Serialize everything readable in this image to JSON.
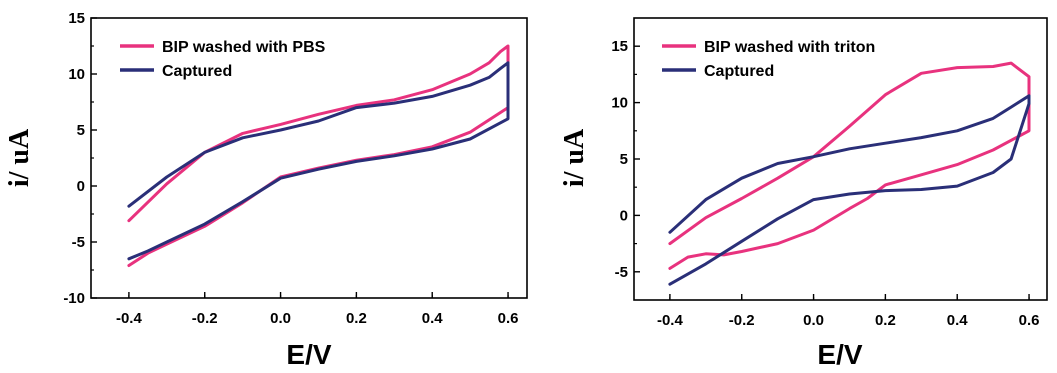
{
  "chart_data": [
    {
      "type": "line",
      "xlabel": "E/V",
      "ylabel": "i/ uA",
      "xlim": [
        -0.5,
        0.65
      ],
      "ylim": [
        -10,
        15
      ],
      "xticks": [
        "-0.4",
        "-0.2",
        "0.0",
        "0.2",
        "0.4",
        "0.6"
      ],
      "yticks": [
        "-10",
        "-5",
        "0",
        "5",
        "10",
        "15"
      ],
      "legend_position": "top-left",
      "series": [
        {
          "name": "BIP washed with PBS",
          "color": "#e8327e",
          "x": [
            -0.4,
            -0.35,
            -0.3,
            -0.2,
            -0.1,
            0.0,
            0.1,
            0.2,
            0.3,
            0.4,
            0.5,
            0.6,
            0.6,
            0.58,
            0.55,
            0.5,
            0.4,
            0.3,
            0.2,
            0.1,
            0.0,
            -0.1,
            -0.2,
            -0.3,
            -0.4
          ],
          "y": [
            -7.1,
            -6.0,
            -5.2,
            -3.6,
            -1.5,
            0.8,
            1.6,
            2.3,
            2.8,
            3.5,
            4.8,
            7.0,
            12.5,
            12.0,
            11.0,
            10.0,
            8.6,
            7.7,
            7.2,
            6.4,
            5.5,
            4.7,
            3.0,
            0.2,
            -3.1
          ]
        },
        {
          "name": "Captured",
          "color": "#2a2f78",
          "x": [
            -0.4,
            -0.35,
            -0.3,
            -0.2,
            -0.1,
            0.0,
            0.1,
            0.2,
            0.3,
            0.4,
            0.5,
            0.6,
            0.6,
            0.58,
            0.55,
            0.5,
            0.4,
            0.3,
            0.2,
            0.1,
            0.0,
            -0.1,
            -0.2,
            -0.3,
            -0.4
          ],
          "y": [
            -6.5,
            -5.8,
            -5.0,
            -3.4,
            -1.4,
            0.7,
            1.5,
            2.2,
            2.7,
            3.3,
            4.2,
            6.0,
            11.0,
            10.5,
            9.7,
            9.0,
            8.0,
            7.4,
            7.0,
            5.8,
            5.0,
            4.3,
            3.0,
            0.8,
            -1.8
          ]
        }
      ]
    },
    {
      "type": "line",
      "xlabel": "E/V",
      "ylabel": "i/ uA",
      "xlim": [
        -0.5,
        0.65
      ],
      "ylim": [
        -7.5,
        17.5
      ],
      "xticks": [
        "-0.4",
        "-0.2",
        "0.0",
        "0.2",
        "0.4",
        "0.6"
      ],
      "yticks": [
        "-5",
        "0",
        "5",
        "10",
        "15"
      ],
      "legend_position": "top-left",
      "series": [
        {
          "name": "BIP washed with triton",
          "color": "#e8327e",
          "x": [
            -0.4,
            -0.35,
            -0.3,
            -0.25,
            -0.2,
            -0.1,
            0.0,
            0.1,
            0.15,
            0.2,
            0.3,
            0.4,
            0.5,
            0.6,
            0.6,
            0.55,
            0.5,
            0.4,
            0.3,
            0.2,
            0.1,
            0.0,
            -0.1,
            -0.2,
            -0.3,
            -0.4
          ],
          "y": [
            -4.7,
            -3.7,
            -3.4,
            -3.5,
            -3.2,
            -2.5,
            -1.3,
            0.6,
            1.5,
            2.7,
            3.6,
            4.5,
            5.8,
            7.5,
            12.3,
            13.5,
            13.2,
            13.1,
            12.6,
            10.7,
            7.9,
            5.2,
            3.3,
            1.5,
            -0.2,
            -2.5
          ]
        },
        {
          "name": "Captured",
          "color": "#2a2f78",
          "x": [
            -0.4,
            -0.3,
            -0.2,
            -0.1,
            0.0,
            0.1,
            0.2,
            0.3,
            0.4,
            0.5,
            0.55,
            0.6,
            0.6,
            0.55,
            0.5,
            0.4,
            0.3,
            0.2,
            0.1,
            0.0,
            -0.1,
            -0.2,
            -0.3,
            -0.4
          ],
          "y": [
            -6.1,
            -4.3,
            -2.3,
            -0.3,
            1.4,
            1.9,
            2.2,
            2.3,
            2.6,
            3.8,
            5.0,
            9.9,
            10.6,
            9.6,
            8.6,
            7.5,
            6.9,
            6.4,
            5.9,
            5.2,
            4.6,
            3.3,
            1.4,
            -1.5
          ]
        }
      ]
    }
  ]
}
